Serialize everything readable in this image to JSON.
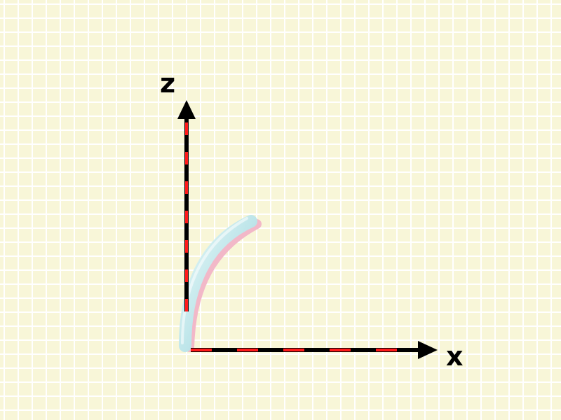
{
  "colors": {
    "background": "#f8f6d8",
    "grid_line": "#ffffff",
    "axis_black": "#000000",
    "axis_red": "#ff1a1a",
    "tube_cyan": "#bfe6ea",
    "tube_pink": "#f2b8c8"
  },
  "axes": {
    "z_label": "z",
    "x_label": "x"
  }
}
